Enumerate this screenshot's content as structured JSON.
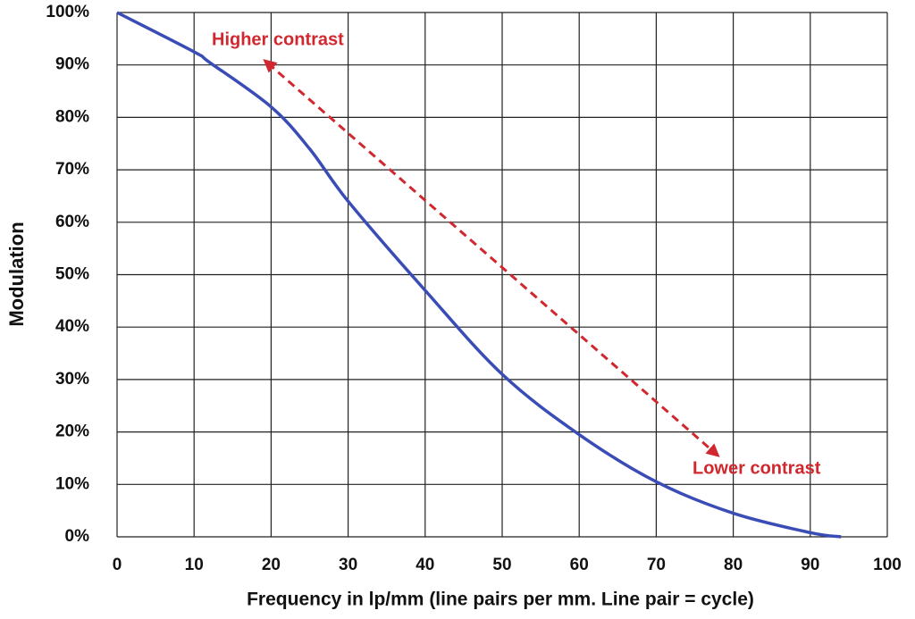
{
  "chart_data": {
    "type": "line",
    "x_label": "Frequency in lp/mm (line pairs per mm. Line pair = cycle)",
    "y_label": "Modulation",
    "annotations": [
      "Higher contrast",
      "Lower contrast"
    ],
    "x": [
      0,
      10,
      12,
      20,
      25,
      30,
      40,
      50,
      60,
      70,
      80,
      90,
      94
    ],
    "series": [
      {
        "color": "#3a4cb6",
        "values": [
          100,
          92.5,
          90.5,
          82,
          74,
          64,
          47,
          31,
          19.5,
          10.5,
          4.5,
          0.8,
          0
        ]
      }
    ],
    "xlim": [
      0,
      100
    ],
    "xticks": [
      0,
      10,
      20,
      30,
      40,
      50,
      60,
      70,
      80,
      90,
      100
    ],
    "ylim": [
      0,
      100
    ],
    "yticks": [
      {
        "value": 0,
        "label": "0%"
      },
      {
        "value": 10,
        "label": "10%"
      },
      {
        "value": 20,
        "label": "20%"
      },
      {
        "value": 30,
        "label": "30%"
      },
      {
        "value": 40,
        "label": "40%"
      },
      {
        "value": 50,
        "label": "50%"
      },
      {
        "value": 60,
        "label": "60%"
      },
      {
        "value": 70,
        "label": "70%"
      },
      {
        "value": 80,
        "label": "80%"
      },
      {
        "value": 90,
        "label": "90%"
      },
      {
        "value": 100,
        "label": "100%"
      }
    ],
    "grid": true
  }
}
